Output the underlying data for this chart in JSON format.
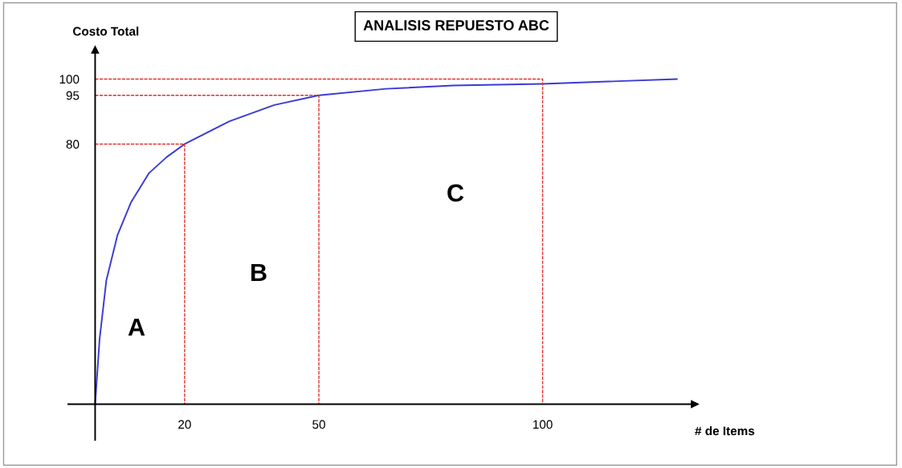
{
  "chart_data": {
    "type": "line",
    "title": "ANALISIS REPUESTO ABC",
    "xlabel": "# de Items",
    "ylabel": "Costo Total",
    "x": [
      0,
      1,
      2.5,
      5,
      8,
      12,
      16,
      20,
      30,
      40,
      50,
      65,
      80,
      100,
      130
    ],
    "series": [
      {
        "color": "#3a3ad8",
        "line_style": "solid",
        "values": [
          0,
          20,
          38,
          52,
          62,
          71,
          76,
          80,
          87,
          92,
          95,
          97,
          98,
          98.5,
          100
        ]
      },
      {
        "color": "#e03030",
        "line_style": "dashed",
        "x": [
          0,
          20,
          20
        ],
        "values": [
          80,
          80,
          0
        ]
      },
      {
        "color": "#e03030",
        "line_style": "dashed",
        "x": [
          0,
          50,
          50
        ],
        "values": [
          95,
          95,
          0
        ]
      },
      {
        "color": "#e03030",
        "line_style": "dashed",
        "x": [
          0,
          100,
          100
        ],
        "values": [
          100,
          100,
          0
        ]
      }
    ],
    "annotations": [
      "A",
      "B",
      "C"
    ],
    "xlim": [
      -6,
      134
    ],
    "ylim": [
      -11,
      109
    ],
    "xticks": [
      20,
      50,
      100
    ],
    "yticks": [
      80,
      95,
      100
    ],
    "grid": false,
    "legend": false,
    "marker": "none"
  }
}
